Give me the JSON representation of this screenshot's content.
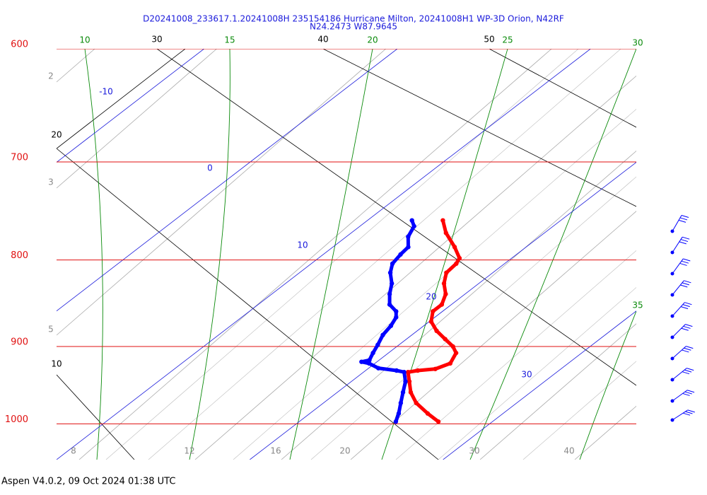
{
  "chart_data": {
    "type": "skew-t",
    "title": "D20241008_233617.1.20241008H 235154186 Hurricane Milton, 20241008H1 WP-3D Orion, N42RF",
    "subtitle": "N24.2473 W87.9645",
    "footer": "Aspen V4.0.2, 09 Oct 2024  01:38 UTC",
    "log_scale": true,
    "ylim": [
      1050,
      600
    ],
    "yticks": [
      600,
      700,
      800,
      900,
      1000
    ],
    "xlim": [
      10,
      40
    ],
    "isotherms": [
      -10,
      0,
      10,
      20,
      30
    ],
    "dry_adiabats": [
      30,
      40,
      50,
      20,
      10
    ],
    "moist_adiabats": [
      10,
      15,
      20,
      25,
      30,
      35
    ],
    "mixing_ratios": [
      2,
      3,
      5,
      8,
      12,
      16,
      20,
      30,
      40
    ],
    "series": [
      {
        "color": "#ff0000",
        "pressure": [
          997,
          986,
          972,
          958,
          944,
          932,
          930,
          928,
          921,
          908,
          900,
          891,
          881,
          870,
          858,
          850,
          838,
          826,
          814,
          804,
          798,
          786,
          771,
          758
        ],
        "values": [
          27.2,
          26.1,
          24.8,
          23.8,
          23.0,
          22.3,
          22.7,
          23.5,
          23.9,
          23.5,
          22.9,
          22.0,
          21.0,
          20.1,
          19.5,
          19.5,
          19.0,
          18.2,
          17.6,
          17.5,
          17.3,
          16.3,
          14.9,
          13.9
        ]
      },
      {
        "color": "#0000ff",
        "pressure": [
          997,
          986,
          972,
          958,
          944,
          932,
          930,
          927,
          921,
          919,
          917,
          908,
          898,
          886,
          875,
          865,
          858,
          850,
          838,
          826,
          814,
          804,
          794,
          786,
          775,
          764,
          758
        ],
        "values": [
          25.0,
          24.6,
          24.0,
          23.4,
          22.8,
          22.1,
          21.6,
          20.5,
          19.7,
          19.2,
          19.5,
          19.2,
          18.9,
          18.5,
          18.3,
          18.0,
          17.6,
          16.8,
          16.1,
          15.5,
          14.7,
          14.2,
          14.0,
          13.9,
          13.2,
          12.8,
          12.3
        ]
      }
    ]
  }
}
